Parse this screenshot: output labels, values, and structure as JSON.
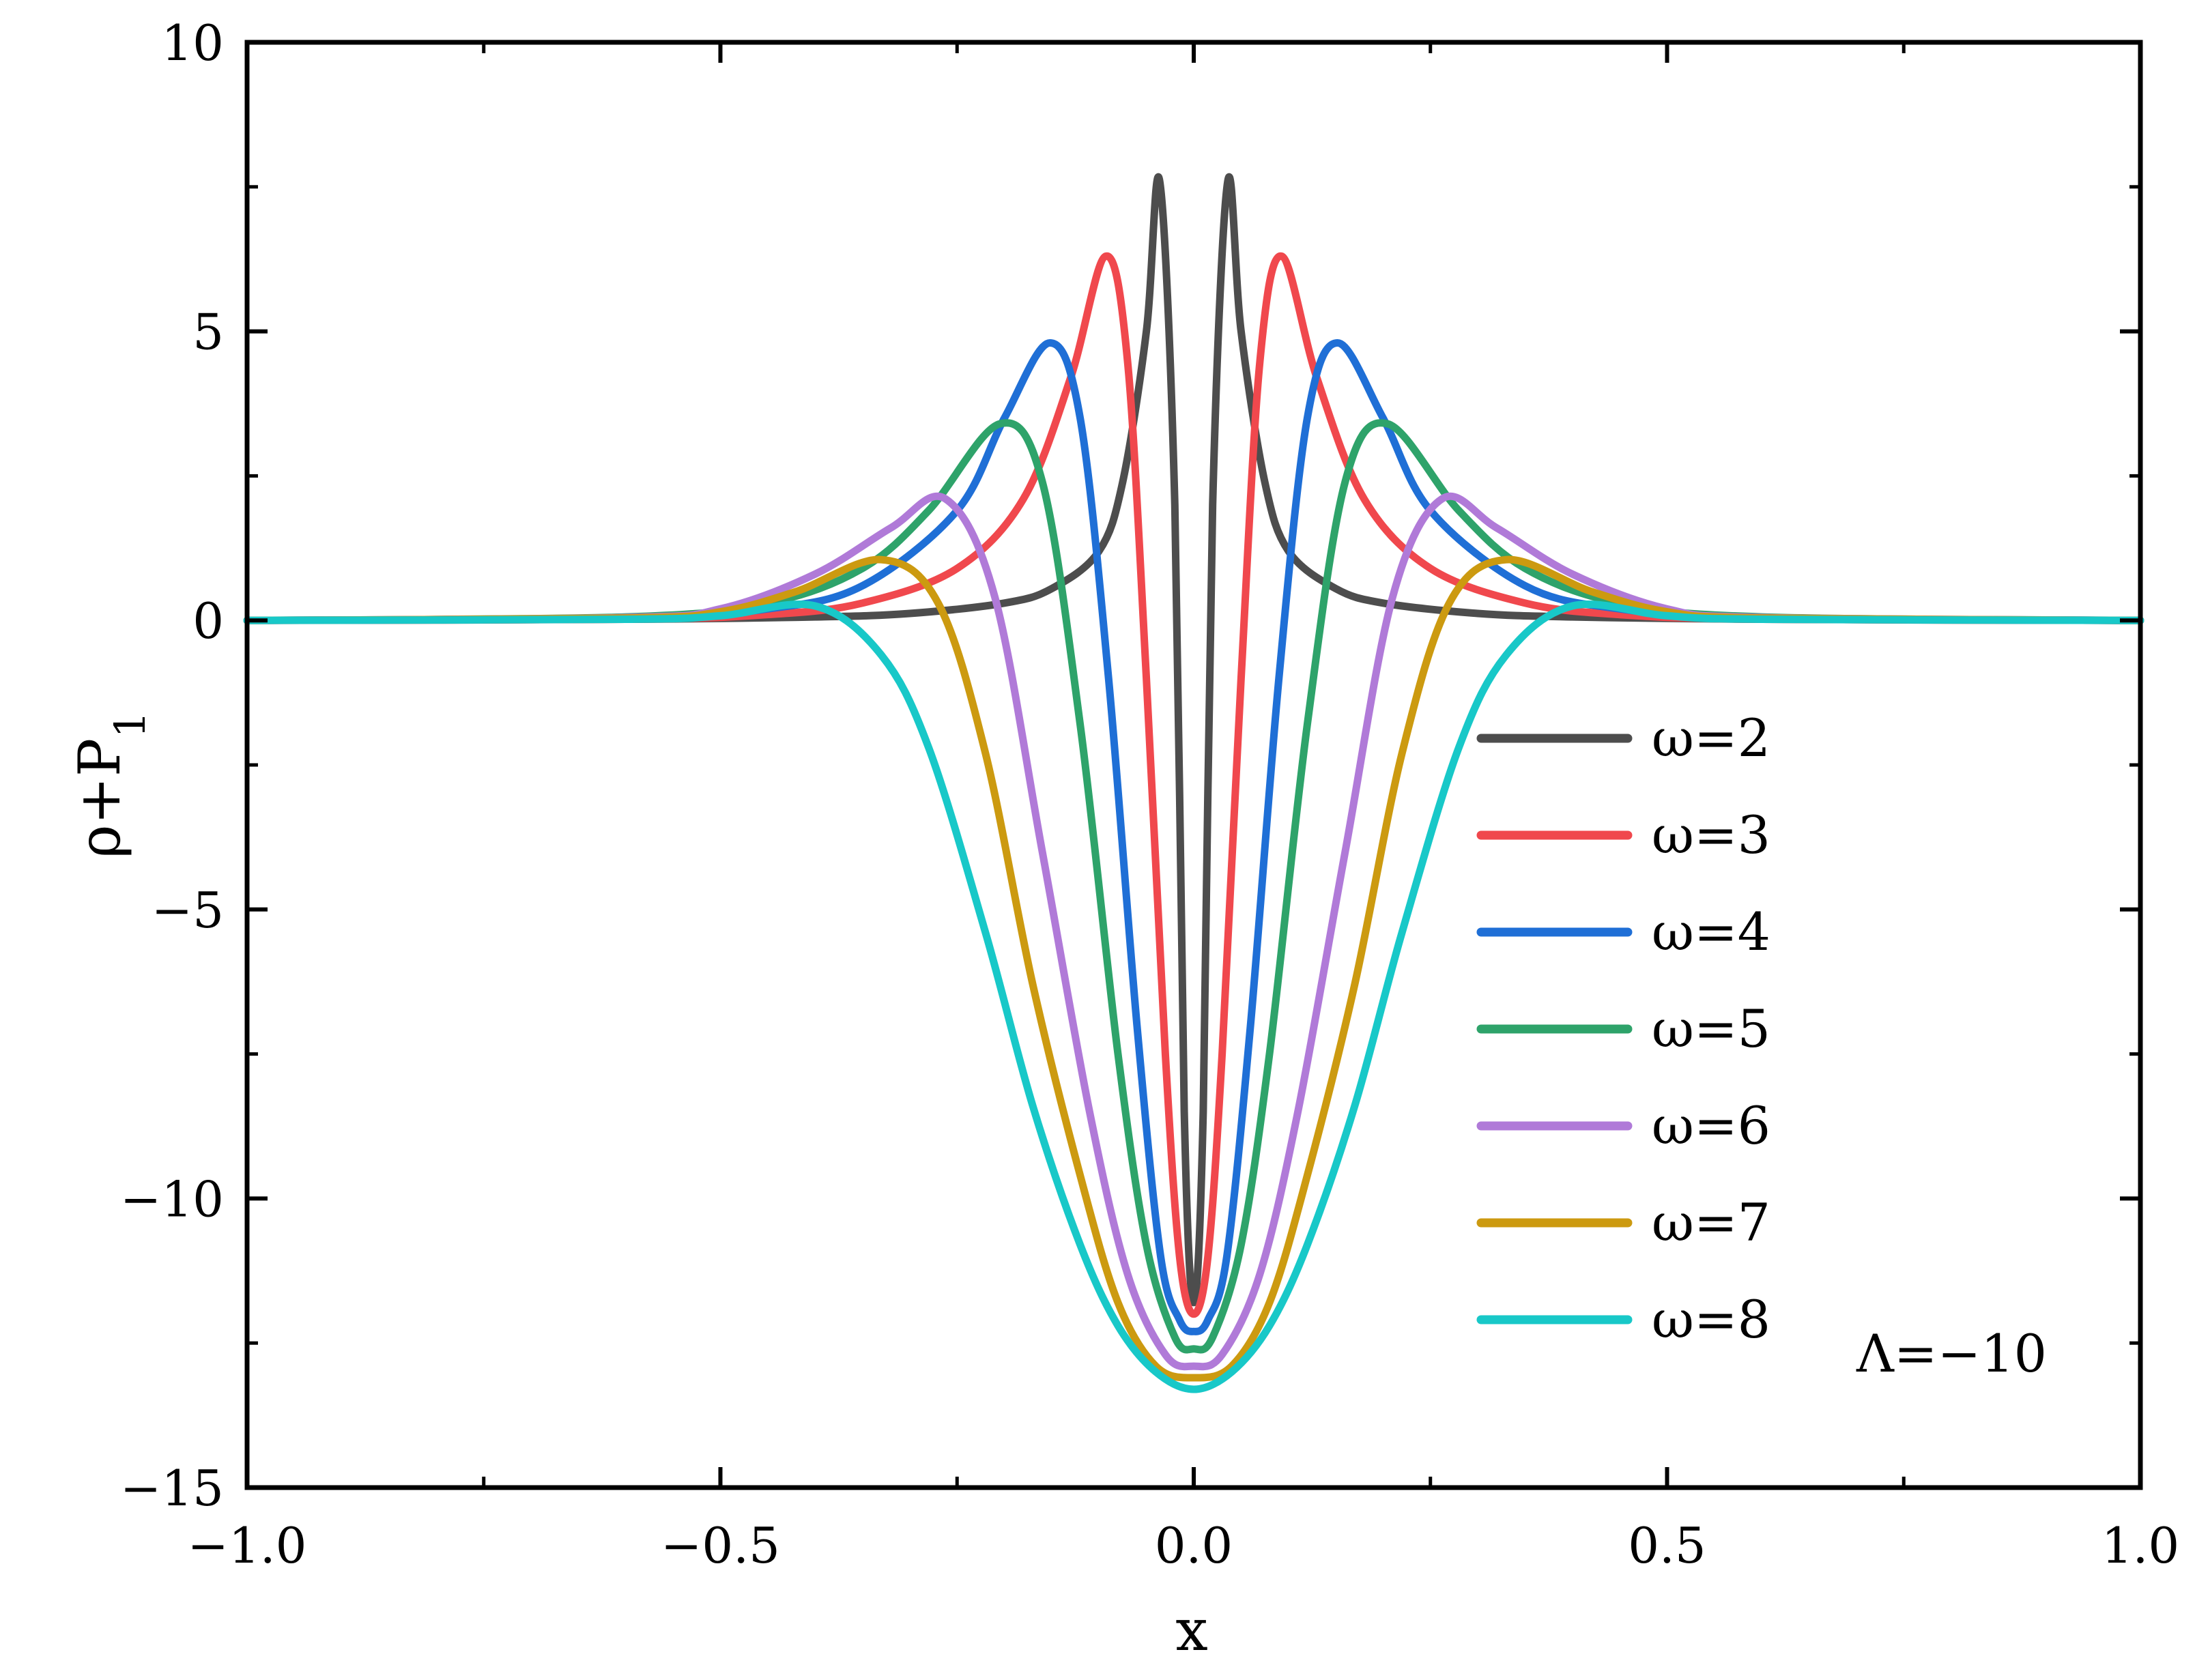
{
  "chart_data": {
    "type": "line",
    "title": "",
    "xlabel": "x",
    "ylabel_main": "ρ+P",
    "ylabel_sub": "1",
    "xlim": [
      -1.0,
      1.0
    ],
    "ylim": [
      -15,
      10
    ],
    "x_ticks": [
      -1.0,
      -0.5,
      0.0,
      0.5,
      1.0
    ],
    "x_tick_labels": [
      "−1.0",
      "−0.5",
      "0.0",
      "0.5",
      "1.0"
    ],
    "y_ticks": [
      -15,
      -10,
      -5,
      0,
      5,
      10
    ],
    "y_tick_labels": [
      "−15",
      "−10",
      "−5",
      "0",
      "5",
      "10"
    ],
    "grid": false,
    "legend_position": "right",
    "annotation": "Λ=−10",
    "series": [
      {
        "name": "ω=2",
        "color": "#4d4d4d",
        "x": [
          -1.0,
          -0.6,
          -0.4,
          -0.3,
          -0.2,
          -0.15,
          -0.1,
          -0.075,
          -0.05,
          -0.036,
          -0.02,
          -0.01,
          0.0,
          0.01,
          0.02,
          0.036,
          0.05,
          0.075,
          0.1,
          0.15,
          0.2,
          0.3,
          0.4,
          0.6,
          1.0
        ],
        "y": [
          0,
          0.02,
          0.06,
          0.12,
          0.3,
          0.55,
          1.2,
          2.4,
          5.0,
          7.6,
          2.0,
          -8.5,
          -11.8,
          -8.5,
          2.0,
          7.6,
          5.0,
          2.4,
          1.2,
          0.55,
          0.3,
          0.12,
          0.06,
          0.02,
          0
        ]
      },
      {
        "name": "ω=3",
        "color": "#f0484d",
        "x": [
          -1.0,
          -0.6,
          -0.45,
          -0.35,
          -0.25,
          -0.18,
          -0.13,
          -0.093,
          -0.07,
          -0.05,
          -0.03,
          -0.015,
          0.0,
          0.015,
          0.03,
          0.05,
          0.07,
          0.093,
          0.13,
          0.18,
          0.25,
          0.35,
          0.45,
          0.6,
          1.0
        ],
        "y": [
          0,
          0.02,
          0.1,
          0.3,
          0.9,
          2.1,
          4.2,
          6.3,
          4.5,
          -1.0,
          -7.5,
          -11.0,
          -12.0,
          -11.0,
          -7.5,
          -1.0,
          4.5,
          6.3,
          4.2,
          2.1,
          0.9,
          0.3,
          0.1,
          0.02,
          0
        ]
      },
      {
        "name": "ω=4",
        "color": "#1f6fd6",
        "x": [
          -1.0,
          -0.6,
          -0.45,
          -0.35,
          -0.25,
          -0.2,
          -0.152,
          -0.12,
          -0.09,
          -0.06,
          -0.035,
          -0.015,
          0.0,
          0.015,
          0.035,
          0.06,
          0.09,
          0.12,
          0.152,
          0.2,
          0.25,
          0.35,
          0.45,
          0.6,
          1.0
        ],
        "y": [
          0,
          0.04,
          0.2,
          0.6,
          1.9,
          3.5,
          4.8,
          3.5,
          -1.0,
          -7.0,
          -11.0,
          -12.1,
          -12.3,
          -12.1,
          -11.0,
          -7.0,
          -1.0,
          3.5,
          4.8,
          3.5,
          1.9,
          0.6,
          0.2,
          0.04,
          0
        ]
      },
      {
        "name": "ω=5",
        "color": "#2ea36a",
        "x": [
          -1.0,
          -0.6,
          -0.45,
          -0.35,
          -0.28,
          -0.205,
          -0.16,
          -0.12,
          -0.08,
          -0.05,
          -0.02,
          0.0,
          0.02,
          0.05,
          0.08,
          0.12,
          0.16,
          0.205,
          0.28,
          0.35,
          0.45,
          0.6,
          1.0
        ],
        "y": [
          0,
          0.06,
          0.3,
          0.9,
          1.9,
          3.4,
          2.4,
          -1.8,
          -7.5,
          -10.8,
          -12.4,
          -12.6,
          -12.4,
          -10.8,
          -7.5,
          -1.8,
          2.4,
          3.4,
          1.9,
          0.9,
          0.3,
          0.06,
          0
        ]
      },
      {
        "name": "ω=6",
        "color": "#b07ad8",
        "x": [
          -1.0,
          -0.6,
          -0.5,
          -0.4,
          -0.32,
          -0.262,
          -0.21,
          -0.16,
          -0.11,
          -0.07,
          -0.03,
          0.0,
          0.03,
          0.07,
          0.11,
          0.16,
          0.21,
          0.262,
          0.32,
          0.4,
          0.5,
          0.6,
          1.0
        ],
        "y": [
          0,
          0.05,
          0.2,
          0.8,
          1.6,
          2.1,
          0.4,
          -4.0,
          -8.5,
          -11.3,
          -12.7,
          -12.9,
          -12.7,
          -11.3,
          -8.5,
          -4.0,
          0.4,
          2.1,
          1.6,
          0.8,
          0.2,
          0.05,
          0
        ]
      },
      {
        "name": "ω=7",
        "color": "#cc9a10",
        "x": [
          -1.0,
          -0.6,
          -0.5,
          -0.42,
          -0.33,
          -0.27,
          -0.22,
          -0.17,
          -0.12,
          -0.08,
          -0.04,
          0.0,
          0.04,
          0.08,
          0.12,
          0.17,
          0.22,
          0.27,
          0.33,
          0.42,
          0.5,
          0.6,
          1.0
        ],
        "y": [
          0,
          0.04,
          0.15,
          0.5,
          1.05,
          0.3,
          -2.3,
          -6.3,
          -9.6,
          -11.8,
          -12.9,
          -13.1,
          -12.9,
          -11.8,
          -9.6,
          -6.3,
          -2.3,
          0.3,
          1.05,
          0.5,
          0.15,
          0.04,
          0
        ]
      },
      {
        "name": "ω=8",
        "color": "#18c8c8",
        "x": [
          -1.0,
          -0.6,
          -0.5,
          -0.4,
          -0.33,
          -0.28,
          -0.22,
          -0.17,
          -0.12,
          -0.08,
          -0.04,
          0.0,
          0.04,
          0.08,
          0.12,
          0.17,
          0.22,
          0.28,
          0.33,
          0.4,
          0.5,
          0.6,
          1.0
        ],
        "y": [
          0,
          0.02,
          0.08,
          0.25,
          -0.6,
          -2.2,
          -5.4,
          -8.4,
          -10.8,
          -12.2,
          -13.0,
          -13.3,
          -13.0,
          -12.2,
          -10.8,
          -8.4,
          -5.4,
          -2.2,
          -0.6,
          0.25,
          0.08,
          0.02,
          0
        ]
      }
    ]
  }
}
